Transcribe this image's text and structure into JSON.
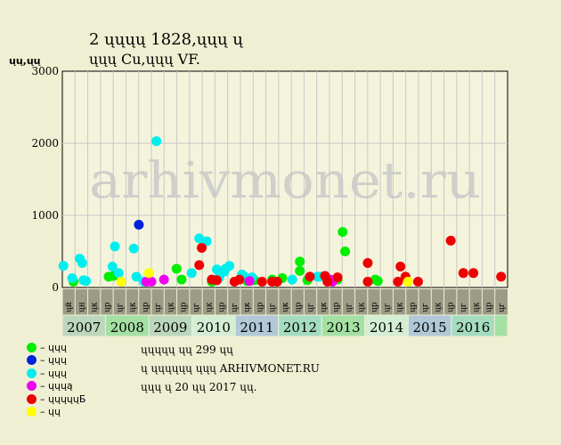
{
  "header": {
    "title": "2 ųųųų 1828,ųųų ų",
    "subtitle": "ųųų Cu,ųųų VF."
  },
  "ylabel": "ųų,ųų",
  "watermark": "arhivmonet.ru",
  "info": {
    "line1": "ųųųųų ųų 299 ųų",
    "line2": "ų ųųųųųų ųųų ARHIVMONET.RU",
    "line3": "ųųų ų 20 ųų 2017 ųų."
  },
  "legend": [
    {
      "label": "– ųųų",
      "color": "#00ee00"
    },
    {
      "label": "– ųųų",
      "color": "#0022dd"
    },
    {
      "label": "– ųųų",
      "color": "#00eeee"
    },
    {
      "label": "– ųųųą",
      "color": "#ee00ee"
    },
    {
      "label": "– ųųųųųБ",
      "color": "#ee0000"
    },
    {
      "label": "– ųų",
      "color": "#ffff00"
    }
  ],
  "chart_data": {
    "type": "scatter",
    "ylim": [
      0,
      3000
    ],
    "yticks": [
      0,
      1000,
      2000,
      3000
    ],
    "grid": true,
    "legend_position": "bottom-left",
    "half_years": [
      "ųй",
      "ųн",
      "ųк",
      "ųр",
      "ųг",
      "ųк",
      "ųр",
      "ųг",
      "ųк",
      "ųр",
      "ųг",
      "ųк",
      "ųр",
      "ųг",
      "ųк",
      "ųр",
      "ųг",
      "ųк",
      "ųр",
      "ųг",
      "ųк",
      "ųр",
      "ųг",
      "ųк",
      "ųр",
      "ųг",
      "ųк",
      "ųр",
      "ųг",
      "ųк",
      "ųр",
      "ųг",
      "ųк",
      "ųр",
      "ųг",
      "ųк",
      "ųр",
      "ųг",
      "ųк",
      "ųр"
    ],
    "years": [
      {
        "label": "2007",
        "start": 0,
        "end": 3,
        "color": "#bcd8bc"
      },
      {
        "label": "2008",
        "start": 3,
        "end": 6,
        "color": "#a4e0a4"
      },
      {
        "label": "2009",
        "start": 6,
        "end": 9,
        "color": "#bcd8bc"
      },
      {
        "label": "2010",
        "start": 9,
        "end": 12,
        "color": "#d4eed4"
      },
      {
        "label": "2011",
        "start": 12,
        "end": 15,
        "color": "#b0c8d8"
      },
      {
        "label": "2012",
        "start": 15,
        "end": 18,
        "color": "#a4dcc0"
      },
      {
        "label": "2013",
        "start": 18,
        "end": 21,
        "color": "#a4e0a4"
      },
      {
        "label": "2014",
        "start": 21,
        "end": 24,
        "color": "#d4eed4"
      },
      {
        "label": "2015",
        "start": 24,
        "end": 27,
        "color": "#b0c8d8"
      },
      {
        "label": "2016",
        "start": 27,
        "end": 30,
        "color": "#a4dcc0"
      }
    ],
    "series": [
      {
        "color": "#00ee00",
        "points": [
          [
            0.3,
            80
          ],
          [
            1.7,
            150
          ],
          [
            1.9,
            160
          ],
          [
            4.4,
            260
          ],
          [
            4.6,
            110
          ],
          [
            5.8,
            80
          ],
          [
            7.2,
            90
          ],
          [
            7.5,
            100
          ],
          [
            8.2,
            110
          ],
          [
            8.6,
            130
          ],
          [
            9.3,
            360
          ],
          [
            9.3,
            230
          ],
          [
            9.6,
            100
          ],
          [
            10.8,
            110
          ],
          [
            11.0,
            770
          ],
          [
            11.1,
            500
          ],
          [
            12.3,
            110
          ],
          [
            12.4,
            90
          ]
        ]
      },
      {
        "color": "#0022dd",
        "points": [
          [
            2.9,
            870
          ]
        ]
      },
      {
        "color": "#00eeee",
        "points": [
          [
            -0.1,
            300
          ],
          [
            0.25,
            130
          ],
          [
            0.55,
            400
          ],
          [
            0.65,
            340
          ],
          [
            0.7,
            100
          ],
          [
            0.8,
            90
          ],
          [
            1.85,
            290
          ],
          [
            1.95,
            570
          ],
          [
            2.1,
            200
          ],
          [
            2.7,
            540
          ],
          [
            2.8,
            150
          ],
          [
            3.1,
            80
          ],
          [
            3.6,
            2030
          ],
          [
            5.0,
            200
          ],
          [
            5.3,
            680
          ],
          [
            5.6,
            640
          ],
          [
            6.0,
            250
          ],
          [
            6.1,
            140
          ],
          [
            6.3,
            220
          ],
          [
            6.35,
            260
          ],
          [
            6.5,
            300
          ],
          [
            7.0,
            180
          ],
          [
            7.1,
            150
          ],
          [
            7.3,
            100
          ],
          [
            7.4,
            140
          ],
          [
            9.0,
            110
          ],
          [
            10.0,
            150
          ],
          [
            10.1,
            150
          ]
        ]
      },
      {
        "color": "#ee00ee",
        "points": [
          [
            3.2,
            80
          ],
          [
            3.4,
            80
          ],
          [
            3.9,
            110
          ],
          [
            7.3,
            90
          ],
          [
            10.5,
            110
          ],
          [
            10.6,
            80
          ]
        ]
      },
      {
        "color": "#ee0000",
        "points": [
          [
            5.3,
            310
          ],
          [
            5.4,
            550
          ],
          [
            5.8,
            110
          ],
          [
            6.0,
            100
          ],
          [
            6.7,
            80
          ],
          [
            6.9,
            110
          ],
          [
            7.8,
            80
          ],
          [
            8.2,
            80
          ],
          [
            8.4,
            80
          ],
          [
            9.7,
            150
          ],
          [
            10.3,
            160
          ],
          [
            10.4,
            80
          ],
          [
            10.8,
            140
          ],
          [
            12.0,
            340
          ],
          [
            12.0,
            80
          ],
          [
            13.2,
            80
          ],
          [
            13.3,
            290
          ],
          [
            13.5,
            150
          ],
          [
            14.0,
            80
          ],
          [
            15.3,
            650
          ],
          [
            15.8,
            200
          ],
          [
            16.2,
            200
          ],
          [
            17.3,
            150
          ]
        ]
      },
      {
        "color": "#ffff00",
        "points": [
          [
            2.2,
            80
          ],
          [
            3.3,
            200
          ],
          [
            13.6,
            80
          ]
        ]
      }
    ]
  }
}
